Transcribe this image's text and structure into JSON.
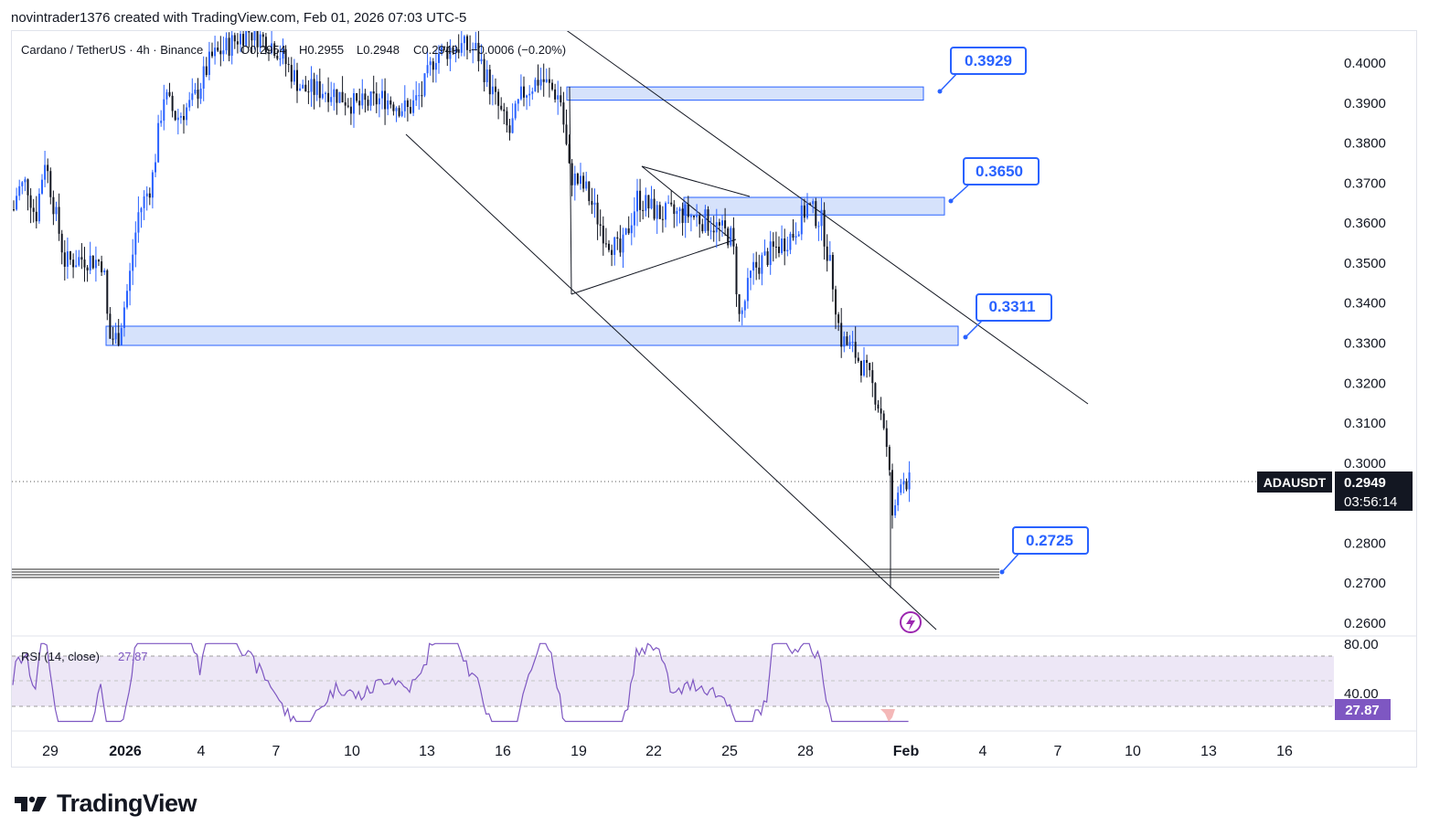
{
  "header": {
    "credit": "novintrader1376 created with TradingView.com, Feb 01, 2026 07:03 UTC-5"
  },
  "legend": {
    "symbol_line": "Cardano / TetherUS · 4h · Binance",
    "open": "O0.2954",
    "high": "H0.2955",
    "low": "L0.2948",
    "close": "C0.2949",
    "change": "−0.0006 (−0.20%)"
  },
  "price_axis": {
    "ticks": [
      "0.4000",
      "0.3900",
      "0.3800",
      "0.3700",
      "0.3600",
      "0.3500",
      "0.3400",
      "0.3300",
      "0.3200",
      "0.3100",
      "0.3000",
      "0.2800",
      "0.2700",
      "0.2600"
    ]
  },
  "last_price": {
    "symbol": "ADAUSDT",
    "price": "0.2949",
    "countdown": "03:56:14"
  },
  "callouts": [
    "0.3929",
    "0.3650",
    "0.3311",
    "0.2725"
  ],
  "time_axis": {
    "labels": [
      "29",
      "2026",
      "4",
      "7",
      "10",
      "13",
      "16",
      "19",
      "22",
      "25",
      "28",
      "Feb",
      "4",
      "7",
      "10",
      "13",
      "16"
    ]
  },
  "rsi": {
    "label": "RSI (14, close)",
    "value_label": "27.87",
    "axis_ticks": [
      "80.00",
      "40.00"
    ],
    "value_badge": "27.87"
  },
  "brand": {
    "name": "TradingView"
  },
  "colors": {
    "up": "#2962ff",
    "down": "#131722",
    "zone_fill": "#d6e2fb",
    "zone_stroke": "#2962ff",
    "rsi_line": "#7e57c2",
    "rsi_band": "#ede7f6",
    "badge_dark": "#131722",
    "rsi_badge": "#7e57c2"
  },
  "icons": {
    "alert": "lightning-icon",
    "logo": "tradingview-logo-icon"
  },
  "chart_data": {
    "type": "candlestick",
    "symbol": "ADAUSDT",
    "timeframe": "4h",
    "x_dates": [
      "29",
      "2026",
      "4",
      "7",
      "10",
      "13",
      "16",
      "19",
      "22",
      "25",
      "28",
      "Feb"
    ],
    "ylim": [
      0.2575,
      0.4045
    ],
    "last_close": 0.2949,
    "path": [
      [
        "29",
        0.368
      ],
      [
        "30",
        0.366
      ],
      [
        "31",
        0.352
      ],
      [
        "2026",
        0.331
      ],
      [
        "1",
        0.328
      ],
      [
        "2",
        0.356
      ],
      [
        "3",
        0.392
      ],
      [
        "4",
        0.398
      ],
      [
        "5",
        0.405
      ],
      [
        "6",
        0.402
      ],
      [
        "7",
        0.406
      ],
      [
        "8",
        0.399
      ],
      [
        "9",
        0.391
      ],
      [
        "10",
        0.389
      ],
      [
        "11",
        0.39
      ],
      [
        "12",
        0.389
      ],
      [
        "13",
        0.393
      ],
      [
        "14",
        0.404
      ],
      [
        "15",
        0.399
      ],
      [
        "16",
        0.389
      ],
      [
        "17",
        0.394
      ],
      [
        "18",
        0.397
      ],
      [
        "19",
        0.368
      ],
      [
        "20",
        0.368
      ],
      [
        "21",
        0.356
      ],
      [
        "22",
        0.363
      ],
      [
        "23",
        0.363
      ],
      [
        "24",
        0.361
      ],
      [
        "25",
        0.357
      ],
      [
        "26",
        0.345
      ],
      [
        "27",
        0.352
      ],
      [
        "28",
        0.362
      ],
      [
        "29b",
        0.351
      ],
      [
        "30b",
        0.33
      ],
      [
        "31b",
        0.318
      ],
      [
        "Feb",
        0.296
      ]
    ],
    "horizontal_zones": [
      {
        "label": "0.3929",
        "low": 0.3905,
        "high": 0.3938
      },
      {
        "label": "0.3650",
        "low": 0.3618,
        "high": 0.3662
      },
      {
        "label": "0.3311",
        "low": 0.3292,
        "high": 0.334
      },
      {
        "label": "0.2725",
        "low": 0.2705,
        "high": 0.273
      }
    ],
    "trendlines": "descending channel plus symmetrical triangle",
    "rsi": {
      "period": 14,
      "last": 27.87,
      "upper_band": 70,
      "lower_band": 30
    }
  }
}
